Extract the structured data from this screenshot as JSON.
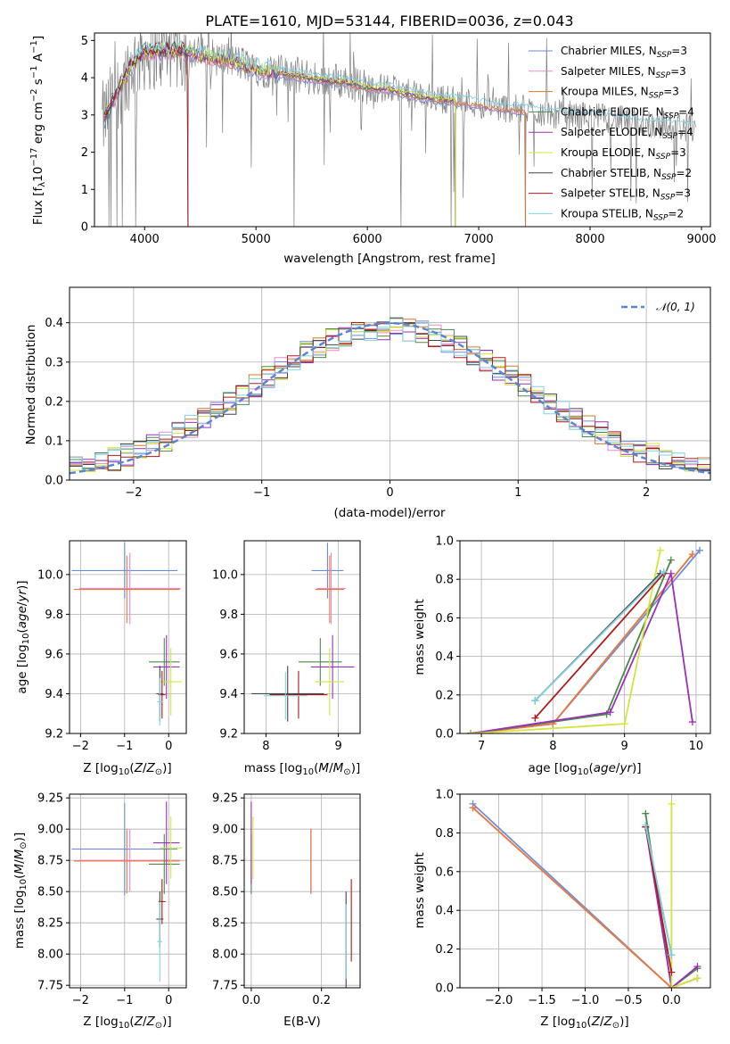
{
  "palette": [
    "#6a8ed8",
    "#e88ac8",
    "#cc7c2c",
    "#4a8a4a",
    "#9a30b8",
    "#d2e63a",
    "#444444",
    "#b01818",
    "#7ed2e6"
  ],
  "extra_colors": {
    "orange": "#e87a3a",
    "spectrum_gray": "#808080"
  },
  "chart_data": [
    {
      "type": "line",
      "id": "spectrum",
      "title": "PLATE=1610, MJD=53144, FIBERID=0036, z=0.043",
      "xlabel": "wavelength [Angstrom, rest frame]",
      "ylabel": "Flux [f_λ 10^-17 erg cm^-2 s^-1 A^-1]",
      "xlim": [
        3550,
        9080
      ],
      "ylim": [
        0,
        5.2
      ],
      "xticks": [
        4000,
        5000,
        6000,
        7000,
        8000,
        9000
      ],
      "yticks": [
        0,
        1,
        2,
        3,
        4,
        5
      ],
      "legend_position": "upper-right",
      "series": [
        {
          "name": "Chabrier MILES, N_SSP=3",
          "color": "#6a8ed8"
        },
        {
          "name": "Salpeter MILES, N_SSP=3",
          "color": "#e88ac8"
        },
        {
          "name": "Kroupa MILES, N_SSP=3",
          "color": "#cc7c2c"
        },
        {
          "name": "Chabrier ELODIE, N_SSP=4",
          "color": "#4a8a4a"
        },
        {
          "name": "Salpeter ELODIE, N_SSP=4",
          "color": "#9a30b8"
        },
        {
          "name": "Kroupa ELODIE, N_SSP=3",
          "color": "#d2e63a"
        },
        {
          "name": "Chabrier STELIB, N_SSP=2",
          "color": "#444444"
        },
        {
          "name": "Salpeter STELIB, N_SSP=3",
          "color": "#b01818"
        },
        {
          "name": "Kroupa STELIB, N_SSP=2",
          "color": "#7ed2e6"
        }
      ],
      "continuum": {
        "x": [
          3620,
          3700,
          3800,
          3900,
          4000,
          4200,
          4400,
          4600,
          4800,
          5000,
          5200,
          5400,
          5600,
          5800,
          6000,
          6200,
          6400,
          6600,
          6800,
          7000,
          7200,
          7400,
          7600,
          7800,
          8000,
          8200,
          8400,
          8600,
          8800,
          8900
        ],
        "y": [
          2.8,
          3.3,
          3.9,
          4.4,
          4.7,
          4.75,
          4.7,
          4.55,
          4.45,
          4.25,
          4.15,
          4.05,
          3.95,
          3.9,
          3.75,
          3.7,
          3.55,
          3.45,
          3.4,
          3.3,
          3.2,
          3.15,
          3.05,
          3.0,
          2.95,
          2.9,
          2.8,
          2.75,
          2.7,
          2.65
        ]
      },
      "model_ranges": [
        [
          3640,
          7420
        ],
        [
          3640,
          7420
        ],
        [
          3640,
          7420
        ],
        [
          3640,
          6790
        ],
        [
          3640,
          6790
        ],
        [
          3640,
          6790
        ],
        [
          3640,
          4390
        ],
        [
          3640,
          4390
        ],
        [
          3640,
          8950
        ]
      ],
      "noise_drops": [
        3680,
        3700,
        3750,
        3800,
        3920,
        4390,
        5340,
        6300,
        6750,
        6790,
        7420
      ]
    },
    {
      "type": "histogram",
      "id": "residuals",
      "xlabel": "(data-model)/error",
      "ylabel": "Normed distribution",
      "xlim": [
        -2.5,
        2.5
      ],
      "ylim": [
        0,
        0.49
      ],
      "xticks": [
        -2,
        -1,
        0,
        1,
        2
      ],
      "yticks": [
        0.0,
        0.1,
        0.2,
        0.3,
        0.4
      ],
      "grid": true,
      "legend": "𝒩(0, 1)",
      "legend_position": "upper-right",
      "bin_width": 0.1,
      "reference_curve": {
        "name": "𝒩(0, 1)",
        "color": "#5b84d4",
        "mu": 0,
        "sigma": 1
      }
    },
    {
      "type": "errorbar",
      "id": "age_vs_Z",
      "xlabel": "Z [log10(Z/Z_sun)]",
      "ylabel": "age [log10(age/yr)]",
      "xlim": [
        -2.25,
        0.4
      ],
      "ylim": [
        9.2,
        10.17
      ],
      "xticks": [
        -2,
        -1,
        0
      ],
      "yticks": [
        9.2,
        9.4,
        9.6,
        9.8,
        10.0
      ],
      "grid": true,
      "points": [
        {
          "series": 0,
          "x": -1.0,
          "y": 10.02,
          "xerr": 1.2,
          "yerr": 0.14
        },
        {
          "series": 1,
          "x": -0.88,
          "y": 9.93,
          "xerr": 1.15,
          "yerr": 0.18
        },
        {
          "series": 2,
          "x": -0.95,
          "y": 9.925,
          "xerr": 1.2,
          "yerr": 0.17
        },
        {
          "series": 3,
          "x": -0.1,
          "y": 9.56,
          "xerr": 0.35,
          "yerr": 0.12
        },
        {
          "series": 4,
          "x": -0.05,
          "y": 9.535,
          "xerr": 0.3,
          "yerr": 0.16
        },
        {
          "series": 5,
          "x": 0.05,
          "y": 9.46,
          "xerr": 0.25,
          "yerr": 0.17
        },
        {
          "series": 6,
          "x": -0.2,
          "y": 9.4,
          "xerr": 0.08,
          "yerr": 0.14
        },
        {
          "series": 7,
          "x": -0.15,
          "y": 9.395,
          "xerr": 0.08,
          "yerr": 0.12
        },
        {
          "series": 8,
          "x": -0.2,
          "y": 9.36,
          "xerr": 0.06,
          "yerr": 0.12
        }
      ]
    },
    {
      "type": "errorbar",
      "id": "age_vs_mass",
      "xlabel": "mass [log10(M/M_sun)]",
      "ylabel": "",
      "xlim": [
        7.7,
        9.3
      ],
      "ylim": [
        9.2,
        10.17
      ],
      "xticks": [
        8,
        9
      ],
      "yticks": [
        9.2,
        9.4,
        9.6,
        9.8,
        10.0
      ],
      "grid": true,
      "points": [
        {
          "series": 0,
          "x": 8.85,
          "y": 10.02,
          "xerr": 0.22,
          "yerr": 0.14
        },
        {
          "series": 1,
          "x": 8.9,
          "y": 9.93,
          "xerr": 0.2,
          "yerr": 0.18
        },
        {
          "series": 2,
          "x": 8.88,
          "y": 9.925,
          "xerr": 0.2,
          "yerr": 0.17
        },
        {
          "series": 3,
          "x": 8.75,
          "y": 9.56,
          "xerr": 0.3,
          "yerr": 0.12
        },
        {
          "series": 4,
          "x": 8.92,
          "y": 9.535,
          "xerr": 0.3,
          "yerr": 0.16
        },
        {
          "series": 5,
          "x": 8.88,
          "y": 9.46,
          "xerr": 0.2,
          "yerr": 0.17
        },
        {
          "series": 6,
          "x": 8.3,
          "y": 9.4,
          "xerr": 0.5,
          "yerr": 0.14
        },
        {
          "series": 7,
          "x": 8.45,
          "y": 9.395,
          "xerr": 0.4,
          "yerr": 0.12
        },
        {
          "series": 8,
          "x": 8.27,
          "y": 9.39,
          "xerr": 0.3,
          "yerr": 0.12
        }
      ]
    },
    {
      "type": "line",
      "id": "mass_weight_vs_age",
      "xlabel": "age [log10(age/yr)]",
      "ylabel": "mass weight",
      "xlim": [
        6.7,
        10.2
      ],
      "ylim": [
        0,
        1.0
      ],
      "xticks": [
        7,
        8,
        9,
        10
      ],
      "yticks": [
        0.0,
        0.2,
        0.4,
        0.6,
        0.8,
        1.0
      ],
      "grid": true,
      "series": [
        {
          "series": 0,
          "x": [
            6.85,
            8.0,
            10.05
          ],
          "y": [
            0.0,
            0.05,
            0.95
          ]
        },
        {
          "series": 1,
          "x": [
            6.85,
            8.0,
            9.95
          ],
          "y": [
            0.0,
            0.05,
            0.93
          ]
        },
        {
          "series": 2,
          "x": [
            6.85,
            8.0,
            9.95
          ],
          "y": [
            0.0,
            0.05,
            0.93
          ]
        },
        {
          "series": 3,
          "x": [
            6.85,
            8.75,
            9.65
          ],
          "y": [
            0.0,
            0.1,
            0.9
          ]
        },
        {
          "series": 4,
          "x": [
            6.85,
            8.8,
            9.65,
            9.95
          ],
          "y": [
            0.0,
            0.11,
            0.83,
            0.06
          ]
        },
        {
          "series": 5,
          "x": [
            6.85,
            9.0,
            9.5
          ],
          "y": [
            0.0,
            0.05,
            0.95
          ]
        },
        {
          "series": 6,
          "x": [
            7.75,
            9.5
          ],
          "y": [
            0.17,
            0.83
          ]
        },
        {
          "series": 7,
          "x": [
            7.75,
            9.55
          ],
          "y": [
            0.08,
            0.83
          ]
        },
        {
          "series": 8,
          "x": [
            7.75,
            9.55
          ],
          "y": [
            0.17,
            0.84
          ]
        }
      ]
    },
    {
      "type": "errorbar",
      "id": "mass_vs_Z",
      "xlabel": "Z [log10(Z/Z_sun)]",
      "ylabel": "mass [log10(M/M_sun)]",
      "xlim": [
        -2.25,
        0.4
      ],
      "ylim": [
        7.73,
        9.28
      ],
      "xticks": [
        -2,
        -1,
        0
      ],
      "yticks": [
        7.75,
        8.0,
        8.25,
        8.5,
        8.75,
        9.0,
        9.25
      ],
      "grid": true,
      "points": [
        {
          "series": 0,
          "x": -1.0,
          "y": 8.84,
          "xerr": 1.2,
          "yerr": 0.37
        },
        {
          "series": 1,
          "x": -0.88,
          "y": 8.75,
          "xerr": 1.15,
          "yerr": 0.25
        },
        {
          "series": 2,
          "x": -0.95,
          "y": 8.745,
          "xerr": 1.2,
          "yerr": 0.26
        },
        {
          "series": 3,
          "x": -0.1,
          "y": 8.72,
          "xerr": 0.35,
          "yerr": 0.24
        },
        {
          "series": 4,
          "x": -0.05,
          "y": 8.89,
          "xerr": 0.3,
          "yerr": 0.33
        },
        {
          "series": 5,
          "x": 0.05,
          "y": 8.85,
          "xerr": 0.25,
          "yerr": 0.25
        },
        {
          "series": 6,
          "x": -0.2,
          "y": 8.28,
          "xerr": 0.08,
          "yerr": 0.22
        },
        {
          "series": 7,
          "x": -0.15,
          "y": 8.42,
          "xerr": 0.08,
          "yerr": 0.18
        },
        {
          "series": 8,
          "x": -0.2,
          "y": 8.1,
          "xerr": 0.06,
          "yerr": 0.32
        }
      ]
    },
    {
      "type": "errorbar",
      "id": "mass_vs_ebv",
      "xlabel": "E(B-V)",
      "ylabel": "",
      "xlim": [
        -0.02,
        0.31
      ],
      "ylim": [
        7.73,
        9.28
      ],
      "xticks": [
        0.0,
        0.2
      ],
      "yticks": [
        7.75,
        8.0,
        8.25,
        8.5,
        8.75,
        9.0,
        9.25
      ],
      "grid": true,
      "points": [
        {
          "series": 0,
          "x": 0.17,
          "y": 8.74,
          "xerr": 0,
          "yerr": 0.26
        },
        {
          "series": 1,
          "x": 0.17,
          "y": 8.75,
          "xerr": 0,
          "yerr": 0.25
        },
        {
          "series": 2,
          "x": 0.17,
          "y": 8.745,
          "xerr": 0,
          "yerr": 0.26
        },
        {
          "series": 3,
          "x": 0.0,
          "y": 8.72,
          "xerr": 0,
          "yerr": 0.24
        },
        {
          "series": 4,
          "x": 0.0,
          "y": 8.89,
          "xerr": 0,
          "yerr": 0.33
        },
        {
          "series": 5,
          "x": 0.005,
          "y": 8.85,
          "xerr": 0,
          "yerr": 0.25
        },
        {
          "series": 6,
          "x": 0.27,
          "y": 8.1,
          "xerr": 0,
          "yerr": 0.4
        },
        {
          "series": 7,
          "x": 0.285,
          "y": 8.27,
          "xerr": 0,
          "yerr": 0.33
        },
        {
          "series": 8,
          "x": 0.27,
          "y": 8.1,
          "xerr": 0,
          "yerr": 0.3
        }
      ]
    },
    {
      "type": "line",
      "id": "mass_weight_vs_Z",
      "xlabel": "Z [log10(Z/Z_sun)]",
      "ylabel": "mass weight",
      "xlim": [
        -2.45,
        0.45
      ],
      "ylim": [
        0,
        1.0
      ],
      "xticks": [
        -2.0,
        -1.5,
        -1.0,
        -0.5,
        0.0
      ],
      "yticks": [
        0.0,
        0.2,
        0.4,
        0.6,
        0.8,
        1.0
      ],
      "grid": true,
      "series": [
        {
          "series": 0,
          "x": [
            -2.3,
            0.0,
            0.3
          ],
          "y": [
            0.95,
            0.0,
            0.05
          ]
        },
        {
          "series": 1,
          "x": [
            -2.3,
            0.0,
            0.3
          ],
          "y": [
            0.93,
            0.0,
            0.05
          ]
        },
        {
          "series": 2,
          "x": [
            -2.3,
            0.0,
            0.3
          ],
          "y": [
            0.93,
            0.0,
            0.05
          ]
        },
        {
          "series": 3,
          "x": [
            -0.3,
            0.0,
            0.3
          ],
          "y": [
            0.9,
            0.0,
            0.1
          ]
        },
        {
          "series": 4,
          "x": [
            -0.3,
            0.0,
            0.3
          ],
          "y": [
            0.83,
            0.0,
            0.11
          ]
        },
        {
          "series": 5,
          "x": [
            0.0,
            0.0,
            0.3
          ],
          "y": [
            0.95,
            0.0,
            0.05
          ]
        },
        {
          "series": 6,
          "x": [
            -0.3,
            0.0
          ],
          "y": [
            0.83,
            0.17
          ]
        },
        {
          "series": 7,
          "x": [
            -0.3,
            0.0
          ],
          "y": [
            0.83,
            0.08
          ]
        },
        {
          "series": 8,
          "x": [
            -0.3,
            0.0
          ],
          "y": [
            0.84,
            0.17
          ]
        }
      ]
    }
  ]
}
